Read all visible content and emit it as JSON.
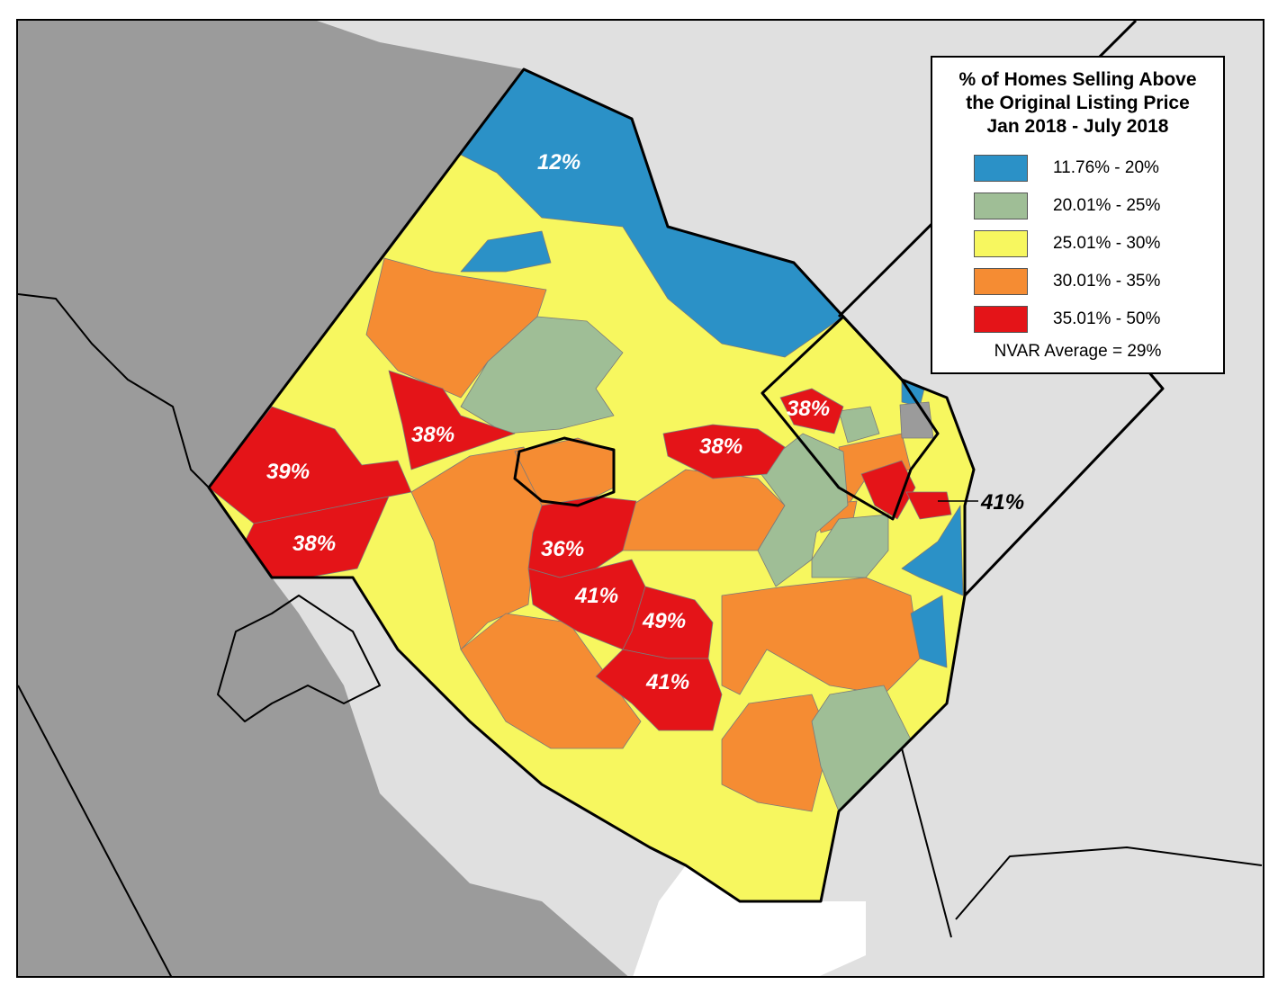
{
  "legend": {
    "title_lines": [
      "% of Homes Selling Above",
      "the Original Listing Price",
      "Jan 2018 - July 2018"
    ],
    "items": [
      {
        "label": "11.76% - 20%",
        "color": "#2b91c7"
      },
      {
        "label": "20.01% - 25%",
        "color": "#9fbe96"
      },
      {
        "label": "25.01% - 30%",
        "color": "#f7f75f"
      },
      {
        "label": "30.01% - 35%",
        "color": "#f58c33"
      },
      {
        "label": "35.01% - 50%",
        "color": "#e41418"
      }
    ],
    "average_note": "NVAR Average = 29%"
  },
  "map_labels": {
    "north_blue": "12%",
    "west_upper": "39%",
    "west_lower": "38%",
    "central_west": "38%",
    "central_east": "38%",
    "northeast": "38%",
    "center_upper": "36%",
    "center_mid": "41%",
    "center_right": "49%",
    "center_lower": "41%",
    "east_callout": "41%"
  },
  "colors": {
    "outside_dark": "#9b9b9b",
    "outside_light": "#e0e0e0",
    "no_data": "#9b9b9b"
  }
}
